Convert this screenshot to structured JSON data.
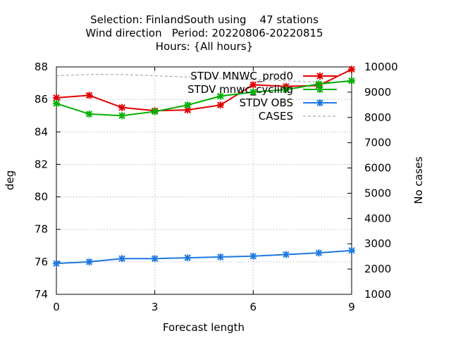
{
  "chart_data": {
    "type": "line",
    "title_lines": [
      "Selection: FinlandSouth using    47 stations",
      "Wind direction   Period: 20220806-20220815",
      "Hours: {All hours}"
    ],
    "xlabel": "Forecast length",
    "ylabel": "deg",
    "y2label": "No cases",
    "x": [
      0,
      1,
      2,
      3,
      4,
      5,
      6,
      7,
      8,
      9
    ],
    "xlim": [
      0,
      9
    ],
    "xticks": [
      "0",
      "3",
      "6",
      "9"
    ],
    "ylim": [
      74,
      88
    ],
    "yticks": [
      "74",
      "76",
      "78",
      "80",
      "82",
      "84",
      "86",
      "88"
    ],
    "y2lim": [
      1000,
      10000
    ],
    "y2ticks": [
      "1000",
      "2000",
      "3000",
      "4000",
      "5000",
      "6000",
      "7000",
      "8000",
      "9000",
      "10000"
    ],
    "grid": true,
    "legend_position": "top-right",
    "series": [
      {
        "name": "STDV MNWC_prod0",
        "color": "#e00000",
        "axis": "y",
        "marker": "x",
        "values": [
          86.1,
          86.25,
          85.5,
          85.3,
          85.35,
          85.65,
          86.9,
          86.8,
          86.85,
          87.85
        ]
      },
      {
        "name": "STDV mnwc_cycling",
        "color": "#00b000",
        "axis": "y",
        "marker": "x",
        "values": [
          85.75,
          85.1,
          85.0,
          85.25,
          85.65,
          86.2,
          86.45,
          86.6,
          86.95,
          87.15
        ]
      },
      {
        "name": "STDV OBS",
        "color": "#1e78e0",
        "axis": "y",
        "marker": "x",
        "values": [
          75.9,
          76.0,
          76.2,
          76.2,
          76.25,
          76.3,
          76.35,
          76.45,
          76.55,
          76.7
        ]
      },
      {
        "name": "CASES",
        "color": "#999999",
        "axis": "y2",
        "marker": "none",
        "dashed": true,
        "values": [
          9650,
          9700,
          9700,
          9650,
          9600,
          9550,
          9500,
          9450,
          9400,
          9400
        ]
      }
    ]
  }
}
